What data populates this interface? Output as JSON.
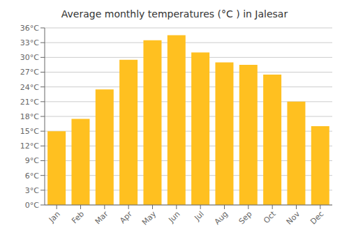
{
  "chart_data": {
    "type": "bar",
    "title": "Average monthly temperatures (°C ) in Jalesar",
    "categories": [
      "Jan",
      "Feb",
      "Mar",
      "Apr",
      "May",
      "Jun",
      "Jul",
      "Aug",
      "Sep",
      "Oct",
      "Nov",
      "Dec"
    ],
    "values": [
      15,
      17.5,
      23.5,
      29.5,
      33.5,
      34.5,
      31,
      29,
      28.5,
      26.5,
      21,
      16
    ],
    "color": "#FFC020",
    "ylim": [
      0,
      36
    ],
    "yticks": [
      {
        "value": 0,
        "label": "0°C"
      },
      {
        "value": 3,
        "label": "3°C"
      },
      {
        "value": 6,
        "label": "6°C"
      },
      {
        "value": 9,
        "label": "9°C"
      },
      {
        "value": 12,
        "label": "12°C"
      },
      {
        "value": 15,
        "label": "15°C"
      },
      {
        "value": 18,
        "label": "18°C"
      },
      {
        "value": 21,
        "label": "21°C"
      },
      {
        "value": 24,
        "label": "24°C"
      },
      {
        "value": 27,
        "label": "27°C"
      },
      {
        "value": 30,
        "label": "30°C"
      },
      {
        "value": 33,
        "label": "33°C"
      },
      {
        "value": 36,
        "label": "36°C"
      }
    ],
    "grid": true
  }
}
